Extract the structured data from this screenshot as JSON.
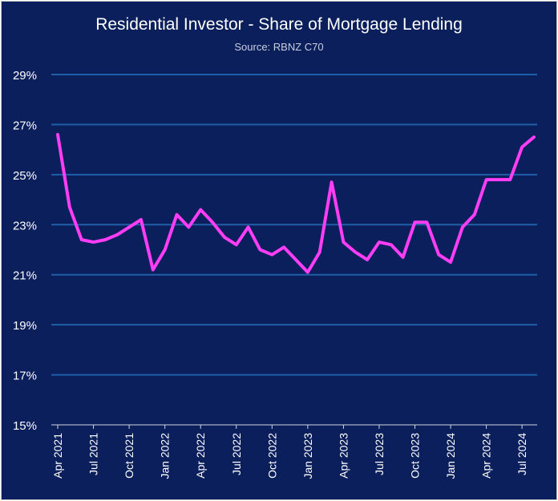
{
  "chart_data": {
    "type": "line",
    "title": "Residential Investor  - Share of Mortgage Lending",
    "subtitle": "Source: RBNZ C70",
    "xlabel": "",
    "ylabel": "",
    "ylim": [
      15,
      29
    ],
    "y_ticks": [
      "15%",
      "17%",
      "19%",
      "21%",
      "23%",
      "25%",
      "27%",
      "29%"
    ],
    "y_tick_values": [
      15,
      17,
      19,
      21,
      23,
      25,
      27,
      29
    ],
    "x_tick_labels": [
      "Apr 2021",
      "Jul 2021",
      "Oct 2021",
      "Jan 2022",
      "Apr 2022",
      "Jul 2022",
      "Oct 2022",
      "Jan 2023",
      "Apr 2023",
      "Jul 2023",
      "Oct 2023",
      "Jan 2024",
      "Apr 2024",
      "Jul 2024"
    ],
    "x_tick_months": [
      "2021-04",
      "2021-07",
      "2021-10",
      "2022-01",
      "2022-04",
      "2022-07",
      "2022-10",
      "2023-01",
      "2023-04",
      "2023-07",
      "2023-10",
      "2024-01",
      "2024-04",
      "2024-07"
    ],
    "x": [
      "2021-04",
      "2021-05",
      "2021-06",
      "2021-07",
      "2021-08",
      "2021-09",
      "2021-10",
      "2021-11",
      "2021-12",
      "2022-01",
      "2022-02",
      "2022-03",
      "2022-04",
      "2022-05",
      "2022-06",
      "2022-07",
      "2022-08",
      "2022-09",
      "2022-10",
      "2022-11",
      "2022-12",
      "2023-01",
      "2023-02",
      "2023-03",
      "2023-04",
      "2023-05",
      "2023-06",
      "2023-07",
      "2023-08",
      "2023-09",
      "2023-10",
      "2023-11",
      "2023-12",
      "2024-01",
      "2024-02",
      "2024-03",
      "2024-04",
      "2024-05",
      "2024-06",
      "2024-07",
      "2024-08"
    ],
    "series": [
      {
        "values": [
          26.6,
          23.7,
          22.4,
          22.3,
          22.4,
          22.6,
          22.9,
          23.2,
          21.2,
          22.0,
          23.4,
          22.9,
          23.6,
          23.1,
          22.5,
          22.2,
          22.9,
          22.0,
          21.8,
          22.1,
          21.6,
          21.1,
          21.9,
          24.7,
          22.3,
          21.9,
          21.6,
          22.3,
          22.2,
          21.7,
          23.1,
          23.1,
          21.8,
          21.5,
          22.9,
          23.4,
          24.8,
          24.8,
          24.8,
          26.1,
          26.5
        ],
        "color": "#ff3df5"
      }
    ],
    "grid": true,
    "grid_color": "#1f5fa8",
    "background": "#0b1f5c",
    "legend": "none"
  }
}
